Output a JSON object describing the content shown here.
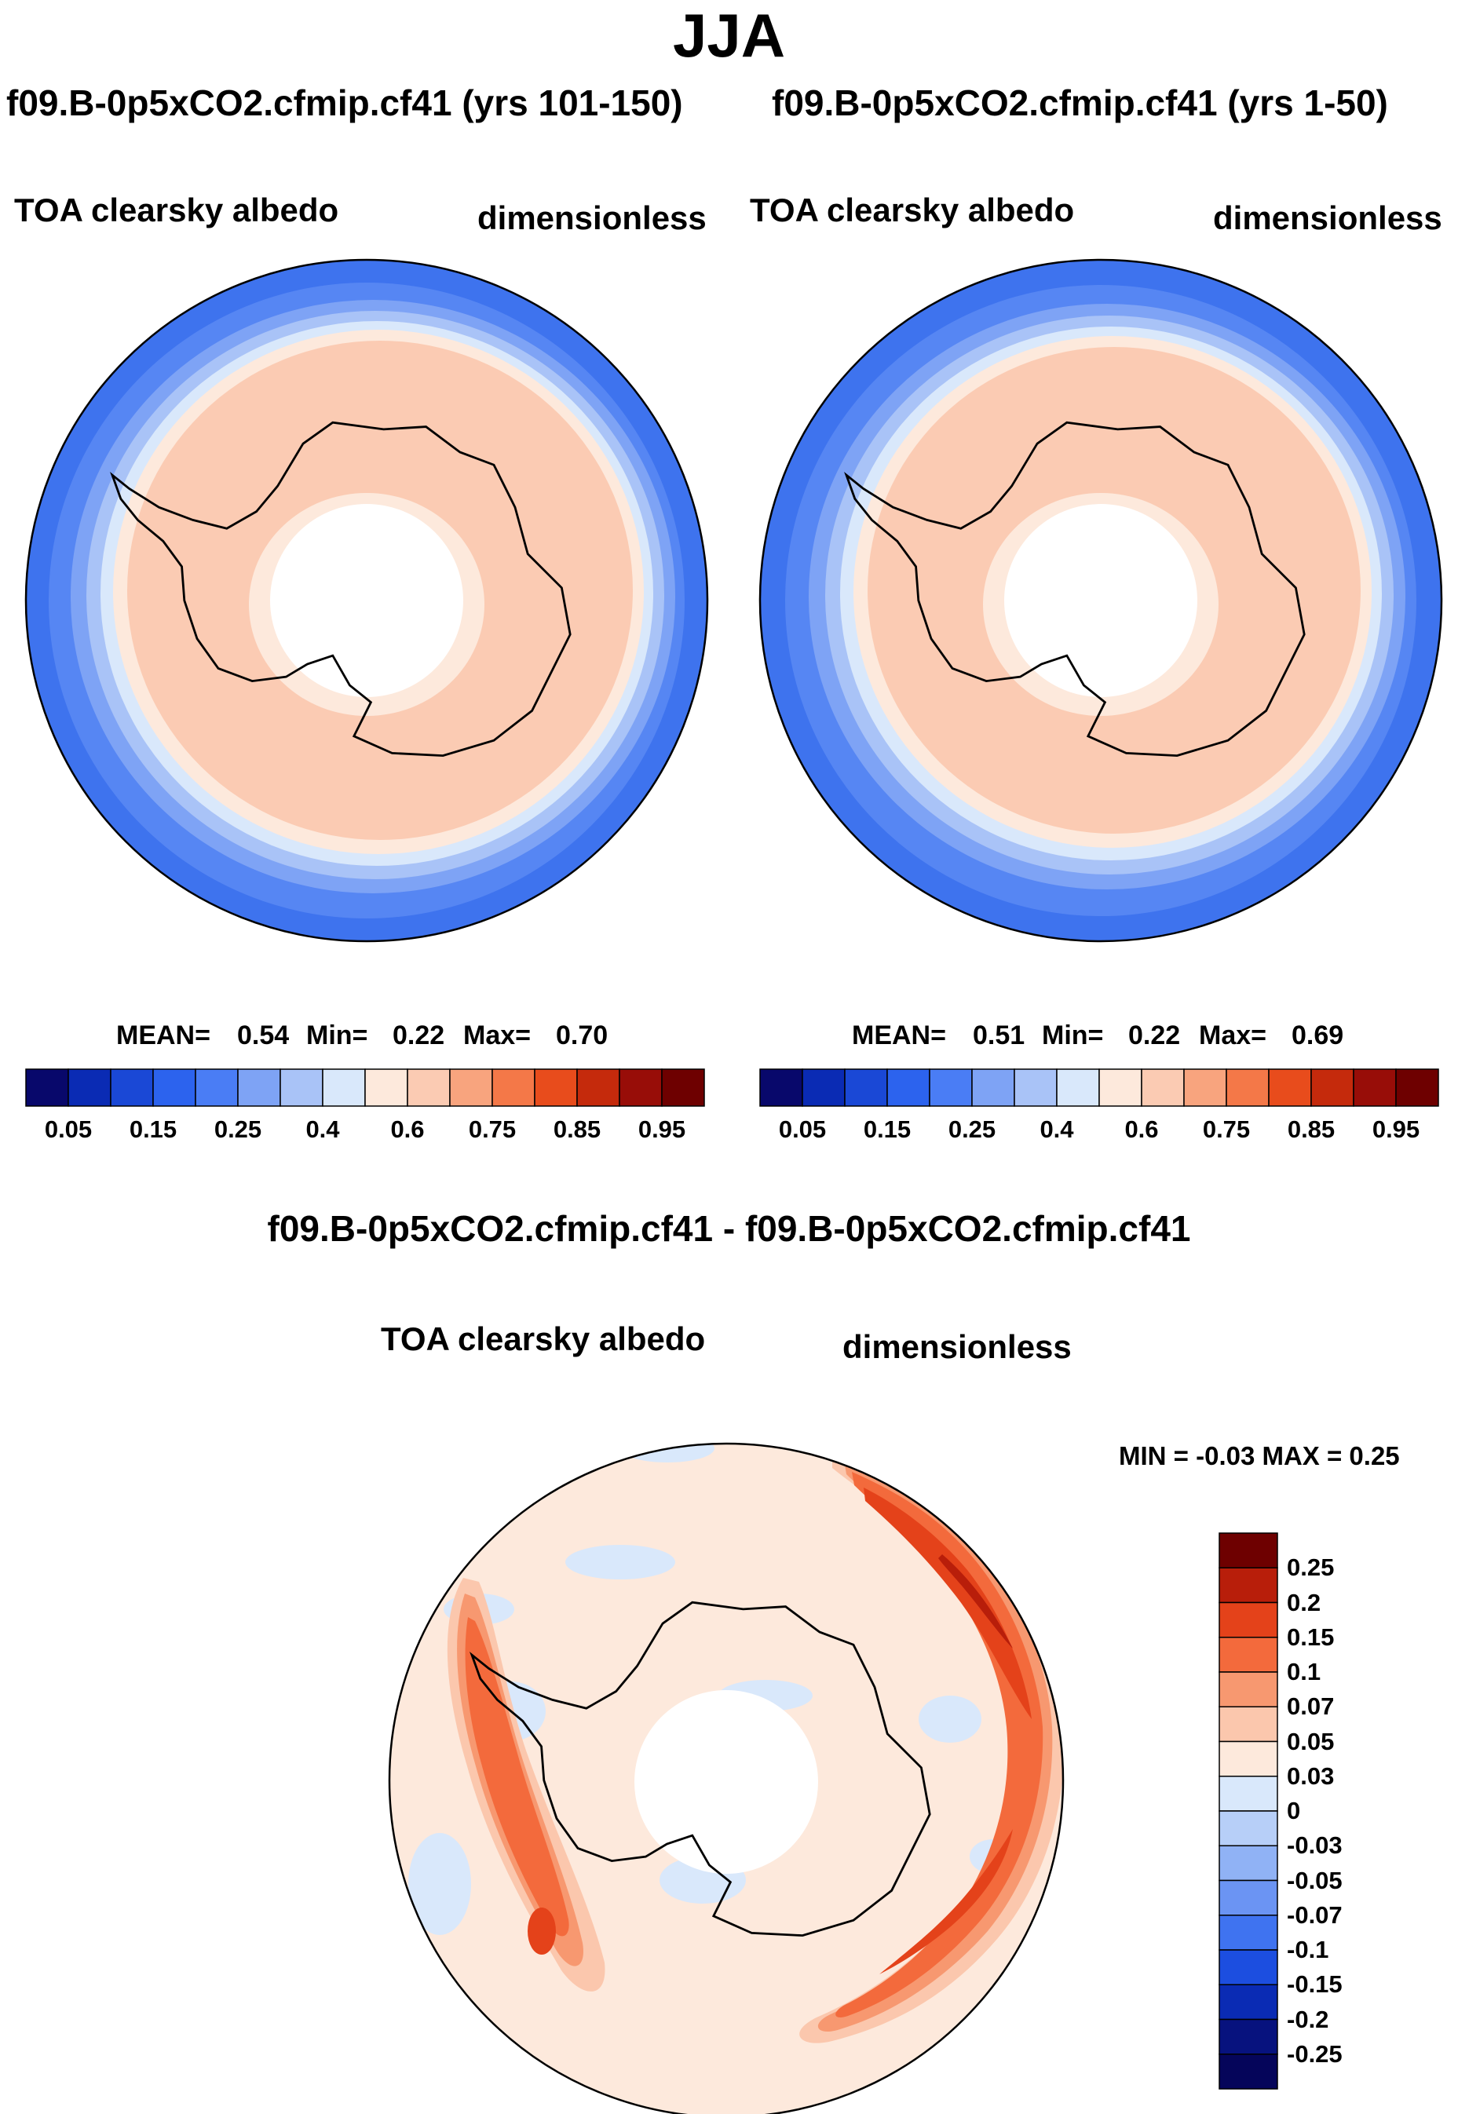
{
  "figure": {
    "title": "JJA",
    "field": "TOA clearsky albedo",
    "units": "dimensionless"
  },
  "panels": [
    {
      "title": "f09.B-0p5xCO2.cfmip.cf41 (yrs 101-150)",
      "field": "TOA clearsky albedo",
      "units": "dimensionless",
      "mean_label": "MEAN=",
      "mean": "0.54",
      "min_label": "Min=",
      "min": "0.22",
      "max_label": "Max=",
      "max": "0.70"
    },
    {
      "title": "f09.B-0p5xCO2.cfmip.cf41 (yrs 1-50)",
      "field": "TOA clearsky albedo",
      "units": "dimensionless",
      "mean_label": "MEAN=",
      "mean": "0.51",
      "min_label": "Min=",
      "min": "0.22",
      "max_label": "Max=",
      "max": "0.69"
    },
    {
      "title": "f09.B-0p5xCO2.cfmip.cf41 - f09.B-0p5xCO2.cfmip.cf41",
      "field": "TOA clearsky albedo",
      "units": "dimensionless",
      "minmax_text": "MIN =  -0.03 MAX =   0.25"
    }
  ],
  "chart_data": [
    {
      "type": "heatmap",
      "projection": "south-polar-stereographic",
      "title": "f09.B-0p5xCO2.cfmip.cf41 (yrs 101-150)",
      "variable": "TOA clearsky albedo",
      "units": "dimensionless",
      "stats": {
        "mean": 0.54,
        "min": 0.22,
        "max": 0.7
      },
      "colorbar": {
        "orientation": "horizontal",
        "tick_labels": [
          "0.05",
          "0.15",
          "0.25",
          "0.4",
          "0.6",
          "0.75",
          "0.85",
          "0.95"
        ],
        "levels": [
          0.05,
          0.1,
          0.15,
          0.2,
          0.25,
          0.3,
          0.4,
          0.5,
          0.6,
          0.7,
          0.75,
          0.8,
          0.85,
          0.9,
          0.95
        ],
        "colors": [
          "#08086b",
          "#0a2bb4",
          "#1a48d6",
          "#2c63ee",
          "#4a7df5",
          "#7ea3f5",
          "#a9c3f7",
          "#d9e8fb",
          "#fde9dc",
          "#fbcbb3",
          "#f8a47e",
          "#f47848",
          "#e84c1c",
          "#c52a0c",
          "#980d08",
          "#6e0000"
        ]
      }
    },
    {
      "type": "heatmap",
      "projection": "south-polar-stereographic",
      "title": "f09.B-0p5xCO2.cfmip.cf41 (yrs 1-50)",
      "variable": "TOA clearsky albedo",
      "units": "dimensionless",
      "stats": {
        "mean": 0.51,
        "min": 0.22,
        "max": 0.69
      },
      "colorbar": {
        "orientation": "horizontal",
        "tick_labels": [
          "0.05",
          "0.15",
          "0.25",
          "0.4",
          "0.6",
          "0.75",
          "0.85",
          "0.95"
        ],
        "levels": [
          0.05,
          0.1,
          0.15,
          0.2,
          0.25,
          0.3,
          0.4,
          0.5,
          0.6,
          0.7,
          0.75,
          0.8,
          0.85,
          0.9,
          0.95
        ],
        "colors": [
          "#08086b",
          "#0a2bb4",
          "#1a48d6",
          "#2c63ee",
          "#4a7df5",
          "#7ea3f5",
          "#a9c3f7",
          "#d9e8fb",
          "#fde9dc",
          "#fbcbb3",
          "#f8a47e",
          "#f47848",
          "#e84c1c",
          "#c52a0c",
          "#980d08",
          "#6e0000"
        ]
      }
    },
    {
      "type": "heatmap",
      "projection": "south-polar-stereographic",
      "title": "f09.B-0p5xCO2.cfmip.cf41 - f09.B-0p5xCO2.cfmip.cf41",
      "variable": "TOA clearsky albedo",
      "units": "dimensionless",
      "stats": {
        "min": -0.03,
        "max": 0.25
      },
      "colorbar": {
        "orientation": "vertical",
        "tick_labels": [
          "0.25",
          "0.2",
          "0.15",
          "0.1",
          "0.07",
          "0.05",
          "0.03",
          "0",
          "-0.03",
          "-0.05",
          "-0.07",
          "-0.1",
          "-0.15",
          "-0.2",
          "-0.25"
        ],
        "colors": [
          "#6e0000",
          "#b81e0a",
          "#e4421a",
          "#f36a3c",
          "#f79870",
          "#fbc7ad",
          "#fde9dc",
          "#d9e8fb",
          "#b7cff8",
          "#90b2f5",
          "#6b94f3",
          "#3f73f0",
          "#1c4ee0",
          "#0a2bb4",
          "#07127e",
          "#05055a"
        ]
      }
    }
  ]
}
